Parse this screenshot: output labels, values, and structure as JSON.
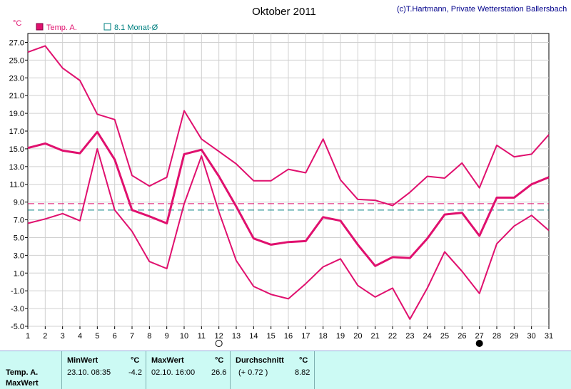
{
  "chart_data": {
    "type": "line",
    "title": "Oktober 2011",
    "credit": "(c)T.Hartmann, Private Wetterstation Ballersbach",
    "y_unit": "°C",
    "ylim": [
      -5.0,
      28.0
    ],
    "y_ticks": [
      "27.0",
      "25.0",
      "23.0",
      "21.0",
      "19.0",
      "17.0",
      "15.0",
      "13.0",
      "11.0",
      "9.0",
      "7.0",
      "5.0",
      "3.0",
      "1.0",
      "-1.0",
      "-3.0",
      "-5.0"
    ],
    "x": [
      1,
      2,
      3,
      4,
      5,
      6,
      7,
      8,
      9,
      10,
      11,
      12,
      13,
      14,
      15,
      16,
      17,
      18,
      19,
      20,
      21,
      22,
      23,
      24,
      25,
      26,
      27,
      28,
      29,
      30,
      31
    ],
    "grid": true,
    "legend": [
      {
        "label": "Temp. A.",
        "color": "#e0106e"
      },
      {
        "label": "8.1 Monat-Ø",
        "color": "#008080"
      }
    ],
    "series": [
      {
        "role": "max",
        "values": [
          25.9,
          26.6,
          24.1,
          22.7,
          18.9,
          18.3,
          12.0,
          10.8,
          11.8,
          19.3,
          16.1,
          14.7,
          13.3,
          11.4,
          11.4,
          12.7,
          12.3,
          16.1,
          11.5,
          9.3,
          9.2,
          8.6,
          10.1,
          11.9,
          11.7,
          13.4,
          10.6,
          15.4,
          14.1,
          14.4,
          16.6
        ]
      },
      {
        "role": "avg",
        "values": [
          15.1,
          15.6,
          14.8,
          14.5,
          16.9,
          13.8,
          8.1,
          7.4,
          6.6,
          14.4,
          14.9,
          11.9,
          8.5,
          4.9,
          4.2,
          4.5,
          4.6,
          7.3,
          6.9,
          4.2,
          1.8,
          2.8,
          2.7,
          4.9,
          7.6,
          7.8,
          5.2,
          9.5,
          9.5,
          11.0,
          11.8
        ]
      },
      {
        "role": "min",
        "values": [
          6.6,
          7.1,
          7.7,
          6.9,
          15.0,
          8.1,
          5.7,
          2.3,
          1.5,
          8.8,
          14.2,
          7.9,
          2.4,
          -0.5,
          -1.4,
          -1.9,
          -0.2,
          1.7,
          2.6,
          -0.4,
          -1.7,
          -0.7,
          -4.2,
          -0.7,
          3.4,
          1.2,
          -1.3,
          4.3,
          6.3,
          7.5,
          5.8
        ]
      }
    ],
    "reference_lines": [
      {
        "value": 8.82,
        "color": "#e0106e",
        "style": "dashed"
      },
      {
        "value": 8.1,
        "color": "#008080",
        "style": "dashed"
      }
    ],
    "moon_markers": [
      {
        "day": 12,
        "phase": "full"
      },
      {
        "day": 27,
        "phase": "new"
      }
    ],
    "colors": {
      "series": "#e0106e",
      "avg_line": "#008080",
      "panel_bg": "#ccfaf4"
    }
  },
  "stats": {
    "row_label_1": "Temp. A.",
    "row_label_2": "MaxWert",
    "min": {
      "header": "MinWert",
      "unit": "°C",
      "datetime": "23.10.  08:35",
      "value": "-4.2"
    },
    "max": {
      "header": "MaxWert",
      "unit": "°C",
      "datetime": "02.10.  16:00",
      "value": "26.6"
    },
    "avg": {
      "header": "Durchschnitt",
      "unit": "°C",
      "deviation": "(+ 0.72 )",
      "value": "8.82"
    }
  }
}
